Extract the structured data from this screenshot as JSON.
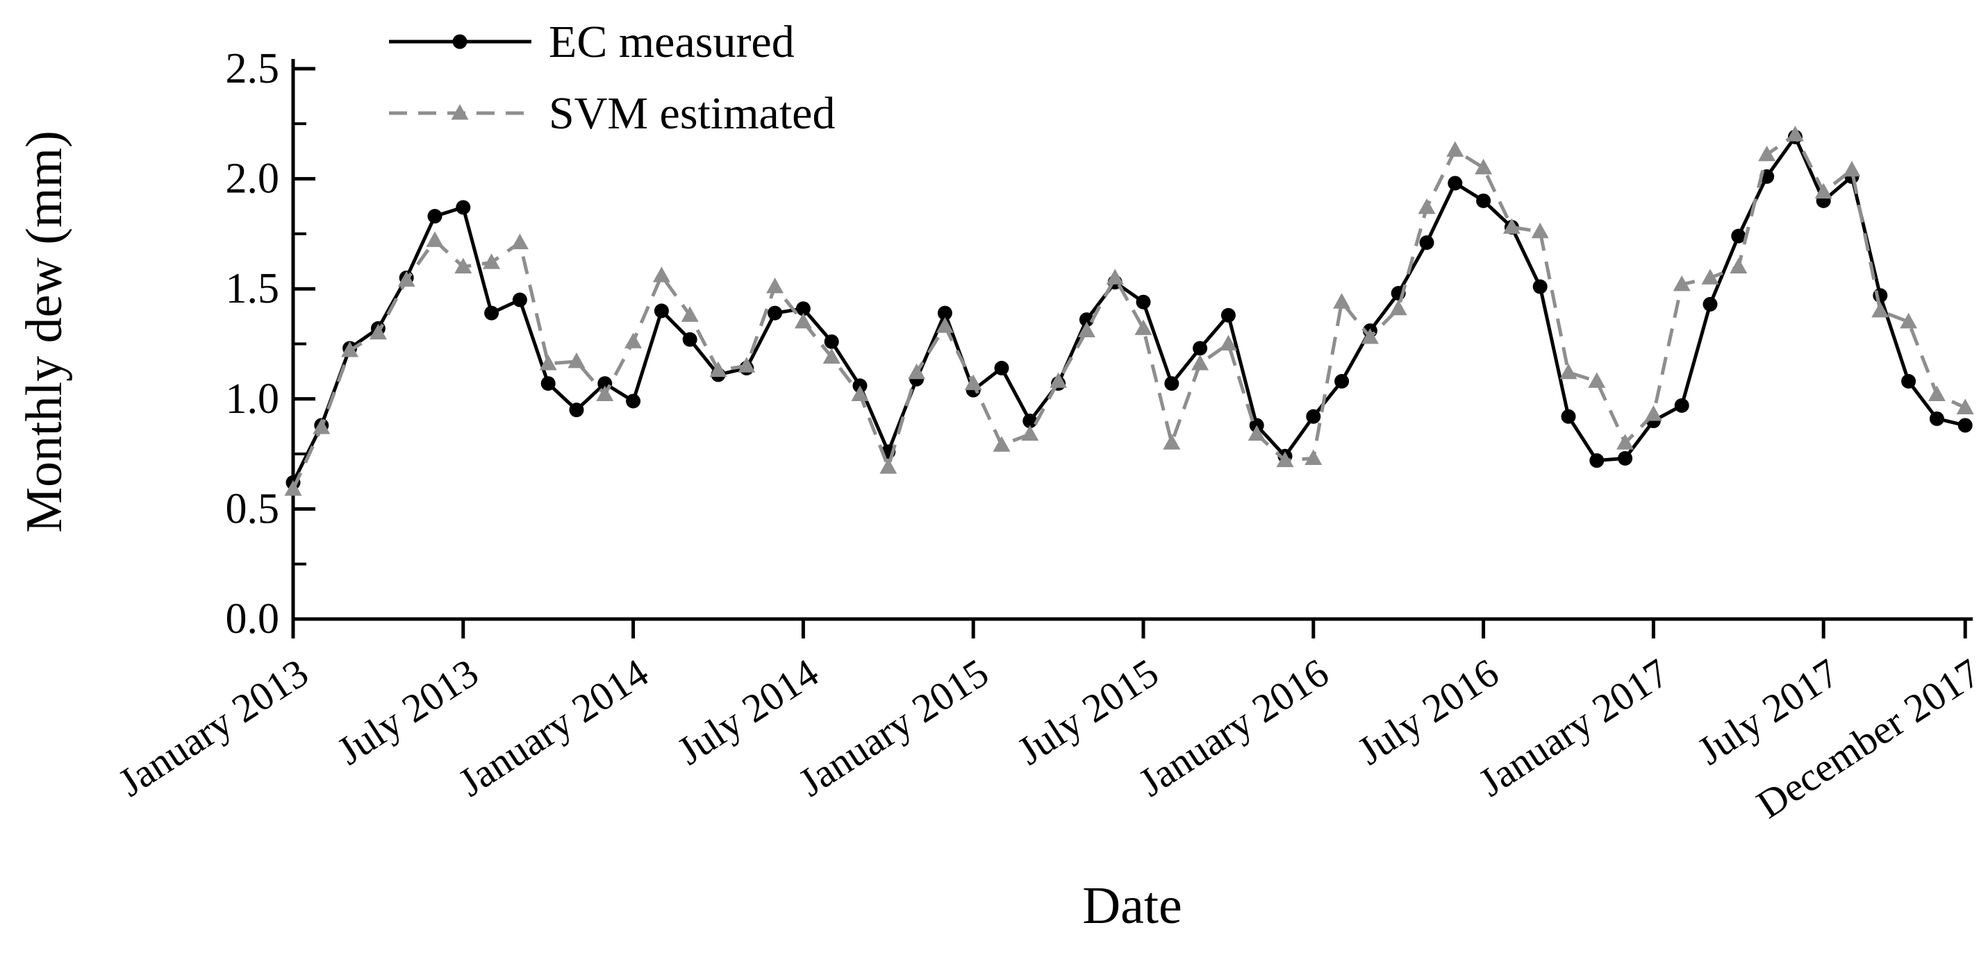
{
  "figure": {
    "background": "#ffffff",
    "axis_color": "#000000"
  },
  "chart_data": {
    "type": "line",
    "title": "",
    "xlabel": "Date",
    "ylabel": "Monthly dew (mm)",
    "ylim": [
      0.0,
      2.5
    ],
    "y_major_tick_labels": [
      "0.0",
      "0.5",
      "1.0",
      "1.5",
      "2.0",
      "2.5"
    ],
    "y_major_tick_values": [
      0.0,
      0.5,
      1.0,
      1.5,
      2.0,
      2.5
    ],
    "y_minor_tick_values": [
      0.25,
      0.75,
      1.25,
      1.75,
      2.25
    ],
    "grid": false,
    "legend_position": "top-left",
    "x_unit": "month-index from January 2013",
    "x_tick_positions_months": [
      0,
      6,
      12,
      18,
      24,
      30,
      36,
      42,
      48,
      54,
      59
    ],
    "x_tick_labels": [
      "January 2013",
      "July 2013",
      "January 2014",
      "July 2014",
      "January 2015",
      "July 2015",
      "January 2016",
      "July 2016",
      "January 2017",
      "July 2017",
      "December 2017"
    ],
    "series": [
      {
        "name": "EC measured",
        "color": "#000000",
        "line_style": "solid",
        "marker": "circle",
        "values": [
          0.62,
          0.88,
          1.23,
          1.32,
          1.55,
          1.83,
          1.87,
          1.39,
          1.45,
          1.07,
          0.95,
          1.07,
          0.99,
          1.4,
          1.27,
          1.11,
          1.14,
          1.39,
          1.41,
          1.26,
          1.06,
          0.76,
          1.09,
          1.39,
          1.04,
          1.14,
          0.9,
          1.07,
          1.36,
          1.53,
          1.44,
          1.07,
          1.23,
          1.38,
          0.88,
          0.74,
          0.92,
          1.08,
          1.31,
          1.48,
          1.71,
          1.98,
          1.9,
          1.78,
          1.51,
          0.92,
          0.72,
          0.73,
          0.9,
          0.97,
          1.43,
          1.74,
          2.01,
          2.19,
          1.9,
          2.01,
          1.47,
          1.08,
          0.91,
          0.88
        ]
      },
      {
        "name": "SVM estimated",
        "color": "#8e8e8e",
        "line_style": "dashed",
        "marker": "triangle",
        "values": [
          0.59,
          0.87,
          1.22,
          1.3,
          1.54,
          1.72,
          1.6,
          1.62,
          1.71,
          1.16,
          1.17,
          1.02,
          1.26,
          1.56,
          1.38,
          1.13,
          1.15,
          1.51,
          1.35,
          1.19,
          1.02,
          0.69,
          1.12,
          1.33,
          1.07,
          0.79,
          0.84,
          1.08,
          1.31,
          1.55,
          1.32,
          0.8,
          1.16,
          1.25,
          0.84,
          0.72,
          0.73,
          1.44,
          1.28,
          1.41,
          1.87,
          2.13,
          2.05,
          1.78,
          1.76,
          1.12,
          1.08,
          0.8,
          0.93,
          1.52,
          1.55,
          1.6,
          2.11,
          2.2,
          1.94,
          2.04,
          1.4,
          1.35,
          1.02,
          0.96
        ]
      }
    ]
  }
}
